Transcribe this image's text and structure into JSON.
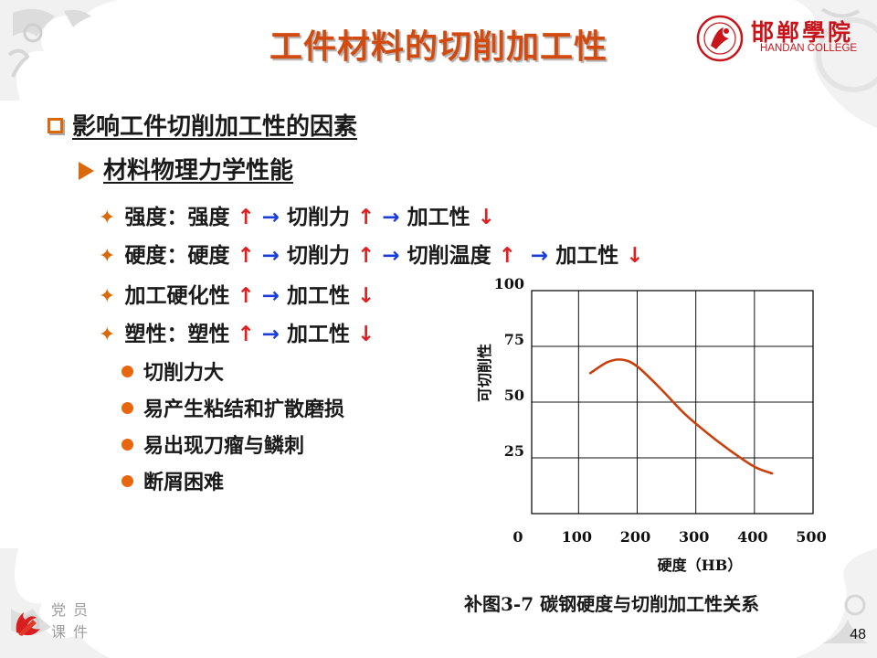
{
  "slide": {
    "title": "工件材料的切削加工性",
    "logo": {
      "cn": "邯郸學院",
      "en": "HANDAN COLLEGE"
    },
    "heading": "影响工件切削加工性的因素",
    "subheading": "材料物理力学性能",
    "items": [
      {
        "prefix": "强度：强度 ",
        "parts": [
          "↑",
          " → ",
          "切削力 ",
          "↑",
          " → ",
          "加工性 ",
          "↓"
        ]
      },
      {
        "prefix": "硬度：硬度 ",
        "parts": [
          "↑",
          " → ",
          "切削力 ",
          "↑",
          " → ",
          "切削温度 ",
          "↑",
          "  → ",
          "加工性 ",
          "↓"
        ]
      },
      {
        "prefix": "加工硬化性 ",
        "parts": [
          "↑",
          " → ",
          "加工性 ",
          "↓"
        ]
      },
      {
        "prefix": "塑性：塑性 ",
        "parts": [
          "↑",
          " → ",
          "加工性 ",
          "↓"
        ]
      }
    ],
    "sub_items": [
      "切削力大",
      "易产生粘结和扩散磨损",
      "易出现刀瘤与鳞刺",
      "断屑困难"
    ],
    "caption": "补图3-7  碳钢硬度与切削加工性关系",
    "footer_mark": "党员课件",
    "page_number": "48"
  },
  "chart_data": {
    "type": "line",
    "xlabel": "硬度（HB）",
    "ylabel": "可切削性",
    "xlim": [
      0,
      500
    ],
    "ylim": [
      0,
      100
    ],
    "x_ticks": [
      "0",
      "100",
      "200",
      "300",
      "400",
      "500"
    ],
    "y_ticks": [
      "100",
      "75",
      "50",
      "25"
    ],
    "grid": true,
    "line_color": "#c8400c",
    "series": [
      {
        "x": [
          120,
          150,
          175,
          200,
          240,
          280,
          320,
          360,
          400,
          430
        ],
        "values": [
          63,
          68,
          69,
          66,
          56,
          45,
          36,
          28,
          21,
          18
        ]
      }
    ]
  },
  "colors": {
    "title": "#d24a10",
    "bullet": "#d96a0b",
    "up_down": "#e02020",
    "arrow": "#1a3cd8"
  }
}
